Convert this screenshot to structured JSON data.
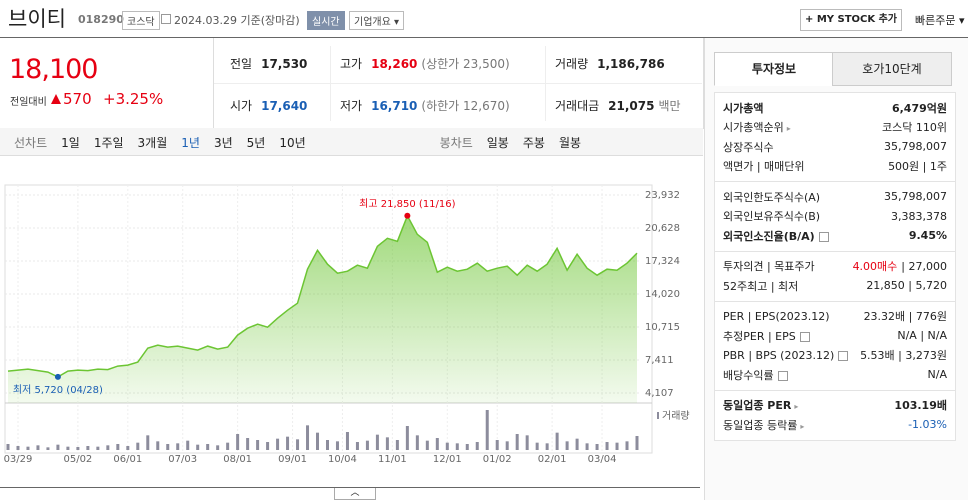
{
  "header": {
    "name": "브이티",
    "code": "018290",
    "market": "코스닥",
    "date": "2024.03.29 기준(장마감)",
    "realtime": "실시간",
    "overview": "기업개요",
    "mystock": "+ MY STOCK 추가",
    "quick_order": "빠른주문"
  },
  "price": {
    "now": "18,100",
    "change_label": "전일대비",
    "change": "570",
    "rate": "+3.25%"
  },
  "quote": [
    {
      "label": "전일",
      "value": "17,530"
    },
    {
      "label": "고가",
      "value": "18,260",
      "extra": "(상한가 23,500)",
      "color": "#e60012"
    },
    {
      "label": "거래량",
      "value": "1,186,786"
    },
    {
      "label": "시가",
      "value": "17,640",
      "color": "#1a5fb4"
    },
    {
      "label": "저가",
      "value": "16,710",
      "extra": "(하한가 12,670)",
      "color": "#1a5fb4"
    },
    {
      "label": "거래대금",
      "value": "21,075",
      "extra": "백만"
    }
  ],
  "tabs": {
    "line_label": "선차트",
    "periods": [
      "1일",
      "1주일",
      "3개월",
      "1년",
      "3년",
      "5년",
      "10년"
    ],
    "selected": 3,
    "candle_label": "봉차트",
    "candles": [
      "일봉",
      "주봉",
      "월봉"
    ]
  },
  "chart_data": [
    {
      "type": "line",
      "color": "#6cc533",
      "xlim": [
        0,
        63
      ],
      "ylim": [
        4107,
        23932
      ],
      "yticks": [
        {
          "value": 23932,
          "label": "23,932"
        },
        {
          "value": 20628,
          "label": "20,628"
        },
        {
          "value": 17324,
          "label": "17,324"
        },
        {
          "value": 14020,
          "label": "14,020"
        },
        {
          "value": 10715,
          "label": "10,715"
        },
        {
          "value": 7411,
          "label": "7,411"
        },
        {
          "value": 4107,
          "label": "4,107"
        }
      ],
      "xticks": [
        {
          "value": 1,
          "label": "03/29"
        },
        {
          "value": 7,
          "label": "05/02"
        },
        {
          "value": 12,
          "label": "06/01"
        },
        {
          "value": 17.5,
          "label": "07/03"
        },
        {
          "value": 23,
          "label": "08/01"
        },
        {
          "value": 28.5,
          "label": "09/01"
        },
        {
          "value": 33.5,
          "label": "10/04"
        },
        {
          "value": 38.5,
          "label": "11/01"
        },
        {
          "value": 44,
          "label": "12/01"
        },
        {
          "value": 49,
          "label": "01/02"
        },
        {
          "value": 54.5,
          "label": "02/01"
        },
        {
          "value": 59.5,
          "label": "03/04"
        }
      ],
      "values": [
        6300,
        6400,
        6500,
        6350,
        6200,
        5720,
        6300,
        6400,
        6350,
        6500,
        6450,
        6800,
        6900,
        7200,
        8600,
        8900,
        8700,
        8800,
        8600,
        8400,
        8800,
        8500,
        8700,
        9900,
        10600,
        11000,
        10700,
        11600,
        12400,
        13100,
        16500,
        18400,
        17000,
        16100,
        16300,
        16900,
        16600,
        18800,
        19600,
        19300,
        21850,
        20000,
        19200,
        16200,
        16700,
        16300,
        16500,
        17100,
        16300,
        16600,
        16800,
        15900,
        16900,
        16300,
        17000,
        18600,
        16400,
        18000,
        16600,
        15900,
        16500,
        16400,
        17100,
        18100
      ],
      "annotations": [
        {
          "text": "최고 21,850 (11/16)",
          "index": 40,
          "color": "#e60012"
        },
        {
          "text": "최저 5,720 (04/28)",
          "index": 5,
          "color": "#1a5fb4"
        }
      ]
    },
    {
      "type": "bar",
      "title": "거래량",
      "color": "#8c8c9c",
      "ylim": [
        0,
        6000000
      ],
      "values": [
        900000,
        600000,
        500000,
        700000,
        400000,
        800000,
        500000,
        450000,
        600000,
        500000,
        700000,
        900000,
        600000,
        1100000,
        2200000,
        1300000,
        900000,
        1000000,
        1400000,
        800000,
        900000,
        700000,
        1100000,
        2400000,
        1800000,
        1500000,
        1200000,
        1700000,
        2000000,
        1600000,
        3700000,
        2600000,
        1500000,
        1300000,
        2700000,
        1200000,
        1400000,
        2300000,
        1900000,
        1500000,
        3600000,
        2200000,
        1400000,
        1800000,
        1100000,
        1000000,
        900000,
        1200000,
        6000000,
        1500000,
        1300000,
        2400000,
        2200000,
        1100000,
        1000000,
        2600000,
        1300000,
        1700000,
        1000000,
        900000,
        1200000,
        1100000,
        1300000,
        2100000
      ]
    }
  ],
  "side": {
    "tabs": [
      "투자정보",
      "호가10단계"
    ],
    "sections": [
      [
        {
          "label": "시가총액",
          "value": "6,479억원",
          "bold": true
        },
        {
          "label": "시가총액순위",
          "value": "코스닥 110위",
          "arrow": true
        },
        {
          "label": "상장주식수",
          "value": "35,798,007"
        },
        {
          "label": "액면가 | 매매단위",
          "value": "500원 | 1주"
        }
      ],
      [
        {
          "label": "외국인한도주식수(A)",
          "value": "35,798,007"
        },
        {
          "label": "외국인보유주식수(B)",
          "value": "3,383,378"
        },
        {
          "label": "외국인소진율(B/A)",
          "value": "9.45%",
          "bold": true,
          "help": true
        }
      ],
      [
        {
          "label": "투자의견 | 목표주가",
          "value": [
            "4.00매수",
            "| 27,000"
          ],
          "accent": "#e60012"
        },
        {
          "label": "52주최고 | 최저",
          "value": "21,850 | 5,720"
        }
      ],
      [
        {
          "label": "PER | EPS(2023.12)",
          "value": "23.32배 | 776원"
        },
        {
          "label": "추정PER | EPS",
          "value": "N/A | N/A",
          "help": true
        },
        {
          "label": "PBR | BPS (2023.12)",
          "value": "5.53배 | 3,273원",
          "help": true
        },
        {
          "label": "배당수익률",
          "value": "N/A",
          "help": true
        }
      ],
      [
        {
          "label": "동일업종 PER",
          "value": "103.19배",
          "bold": true,
          "arrow": true
        },
        {
          "label": "동일업종 등락률",
          "value": "-1.03%",
          "arrow": true,
          "color": "#1a5fb4"
        }
      ]
    ]
  }
}
